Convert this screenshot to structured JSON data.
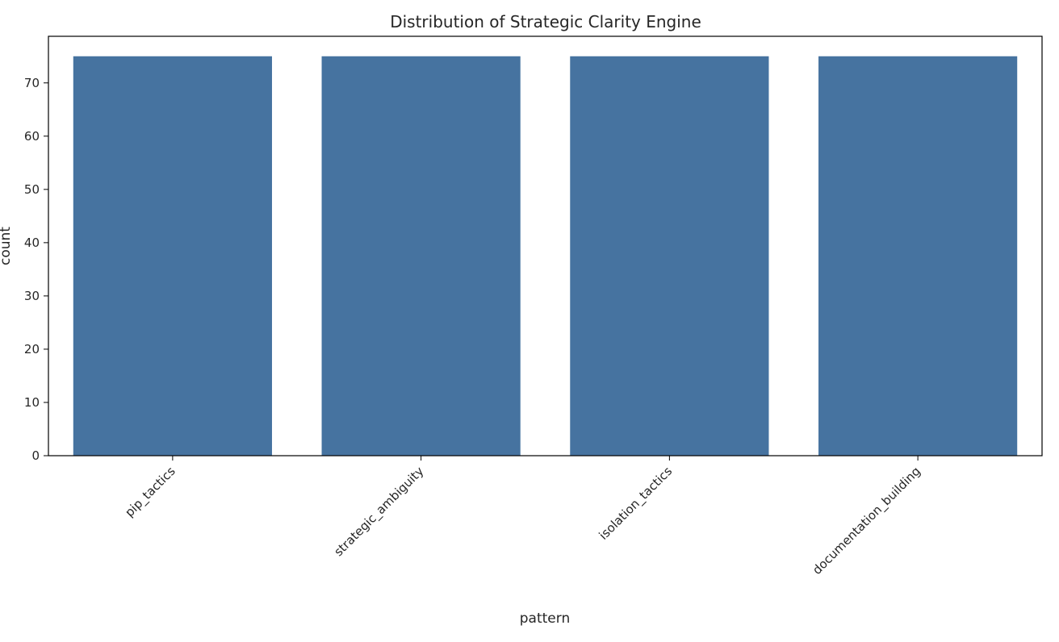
{
  "chart_data": {
    "type": "bar",
    "title": "Distribution of Strategic Clarity Engine",
    "xlabel": "pattern",
    "ylabel": "count",
    "categories": [
      "pip_tactics",
      "strategic_ambiguity",
      "isolation_tactics",
      "documentation_building"
    ],
    "values": [
      75,
      75,
      75,
      75
    ],
    "ylim": [
      0,
      78.75
    ],
    "yticks": [
      0,
      10,
      20,
      30,
      40,
      50,
      60,
      70
    ],
    "grid": false,
    "legend": "none",
    "bar_color": "#4673a0"
  }
}
